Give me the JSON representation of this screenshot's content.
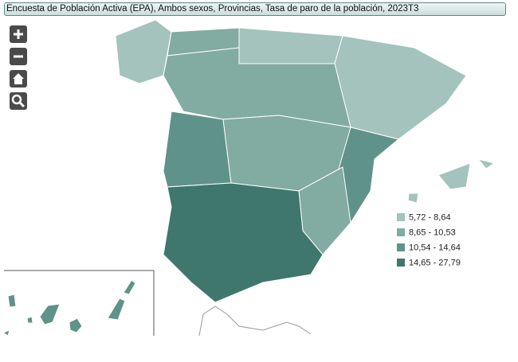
{
  "title": "Encuesta de Población Activa (EPA), Ambos sexos, Provincias, Tasa de paro de la población, 2023T3",
  "legend": [
    {
      "label": "5,72 - 8,64",
      "color": "#a3c3bc"
    },
    {
      "label": "8,65 - 10,53",
      "color": "#82aba2"
    },
    {
      "label": "10,54 - 14,64",
      "color": "#5f9389"
    },
    {
      "label": "14,65 - 27,79",
      "color": "#3f776c"
    }
  ]
}
